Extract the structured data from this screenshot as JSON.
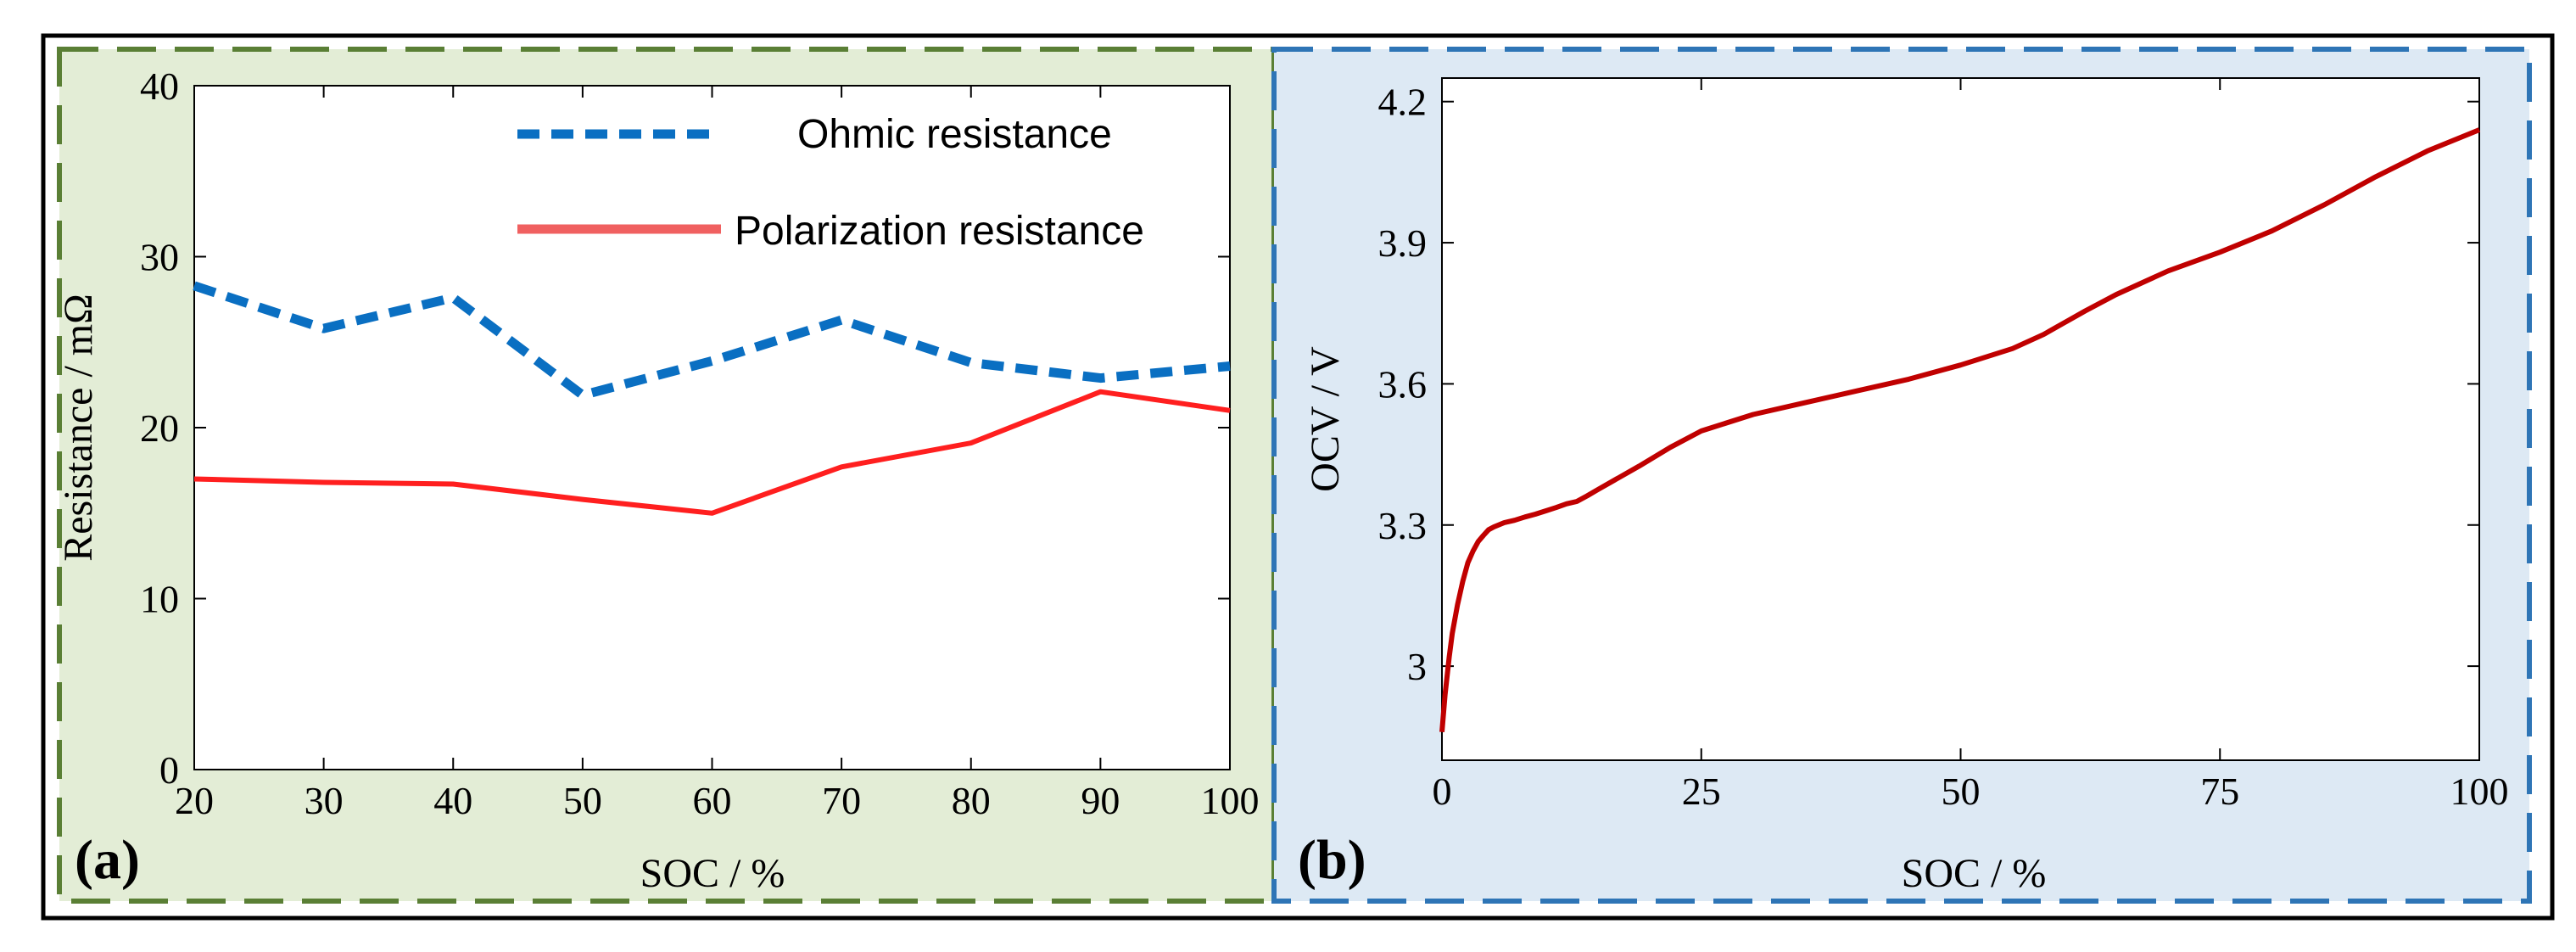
{
  "colors": {
    "panel_a_fill": "#e3edd6",
    "panel_a_border": "#5a7f35",
    "panel_b_fill": "#dde9f4",
    "panel_b_border": "#2e75b6",
    "ohmic": "#0a6fc2",
    "polarization": "#ff1f1f",
    "legend_polarization": "#f06060",
    "ocv": "#c00000"
  },
  "chart_data": [
    {
      "panel": "a",
      "panel_label": "(a)",
      "type": "line",
      "xlabel": "SOC / %",
      "ylabel": "Resistance / mΩ",
      "xlim": [
        20,
        100
      ],
      "ylim": [
        0,
        40
      ],
      "xticks": [
        "20",
        "30",
        "40",
        "50",
        "60",
        "70",
        "80",
        "90",
        "100"
      ],
      "yticks": [
        "0",
        "10",
        "20",
        "30",
        "40"
      ],
      "legend_position": "top-right",
      "x": [
        20,
        30,
        40,
        50,
        60,
        70,
        80,
        90,
        100
      ],
      "series": [
        {
          "name": "Ohmic resistance",
          "style": "dashed",
          "values": [
            28.3,
            25.8,
            27.6,
            21.9,
            23.9,
            26.3,
            23.8,
            22.9,
            23.6
          ]
        },
        {
          "name": "Polarization resistance",
          "style": "solid",
          "values": [
            17.0,
            16.8,
            16.7,
            15.8,
            15.0,
            17.7,
            19.1,
            22.1,
            21.0
          ]
        }
      ]
    },
    {
      "panel": "b",
      "panel_label": "(b)",
      "type": "line",
      "xlabel": "SOC / %",
      "ylabel": "OCV / V",
      "xlim": [
        0,
        100
      ],
      "ylim": [
        2.8,
        4.25
      ],
      "xticks": [
        "0",
        "25",
        "50",
        "75",
        "100"
      ],
      "yticks": [
        "3",
        "3.3",
        "3.6",
        "3.9",
        "4.2"
      ],
      "series": [
        {
          "name": "OCV",
          "style": "solid",
          "x": [
            0,
            0.3,
            0.7,
            1,
            1.5,
            2,
            2.5,
            3,
            3.5,
            4,
            4.5,
            5,
            6,
            7,
            8,
            9,
            10,
            11,
            12,
            13,
            14,
            15,
            17,
            19,
            22,
            25,
            30,
            35,
            40,
            45,
            50,
            55,
            58,
            60,
            62,
            65,
            70,
            75,
            80,
            85,
            90,
            95,
            100
          ],
          "values": [
            2.86,
            2.94,
            3.02,
            3.07,
            3.13,
            3.18,
            3.22,
            3.245,
            3.265,
            3.278,
            3.29,
            3.296,
            3.305,
            3.31,
            3.317,
            3.323,
            3.33,
            3.337,
            3.345,
            3.35,
            3.362,
            3.375,
            3.4,
            3.425,
            3.465,
            3.5,
            3.535,
            3.56,
            3.585,
            3.61,
            3.64,
            3.675,
            3.705,
            3.73,
            3.755,
            3.79,
            3.84,
            3.88,
            3.925,
            3.98,
            4.04,
            4.095,
            4.14
          ]
        }
      ]
    }
  ]
}
